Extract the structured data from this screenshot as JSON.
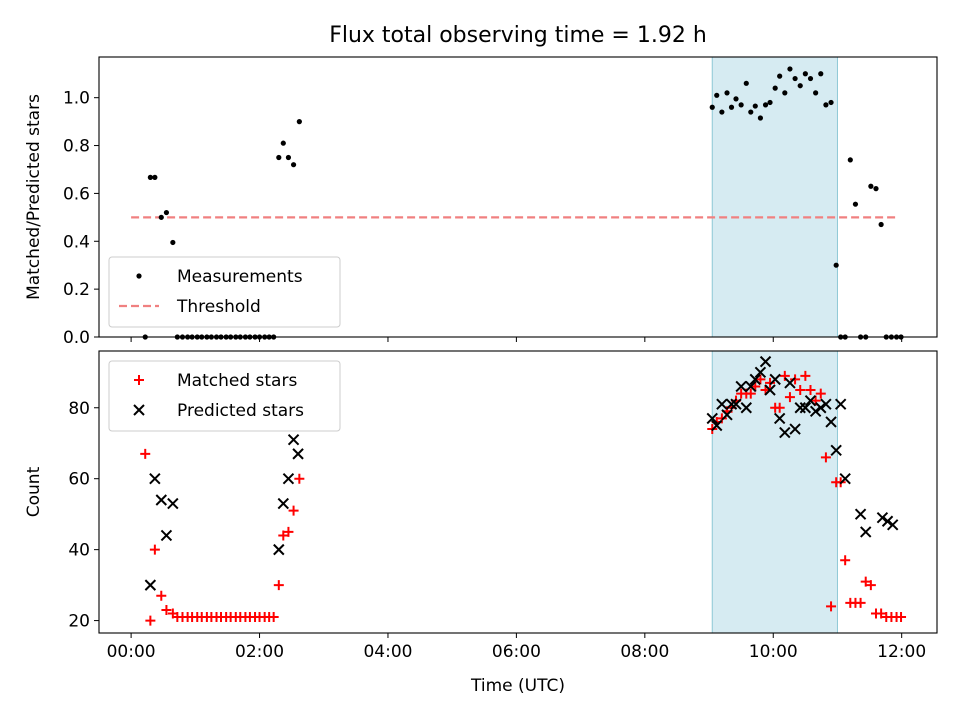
{
  "chart_data": [
    {
      "type": "scatter",
      "title": "Flux total observing time = 1.92 h",
      "ylabel": "Matched/Predicted stars",
      "xlabel": "",
      "xlim": [
        -0.5,
        12.55
      ],
      "ylim": [
        0,
        1.17
      ],
      "xticks": [
        0,
        2,
        4,
        6,
        8,
        10,
        12
      ],
      "xtick_labels": [
        "00:00",
        "02:00",
        "04:00",
        "06:00",
        "08:00",
        "10:00",
        "12:00"
      ],
      "yticks": [
        0.0,
        0.2,
        0.4,
        0.6,
        0.8,
        1.0
      ],
      "ytick_labels": [
        "0.0",
        "0.2",
        "0.4",
        "0.6",
        "0.8",
        "1.0"
      ],
      "shaded_span": [
        9.05,
        11.0
      ],
      "legend_location": "lower-left",
      "threshold": {
        "name": "Threshold",
        "value": 0.5,
        "x_range": [
          0.0,
          11.9
        ],
        "color": "#f08080"
      },
      "series": [
        {
          "name": "Measurements",
          "color": "#000000",
          "x": [
            0.22,
            0.3,
            0.37,
            0.47,
            0.55,
            0.65,
            0.72,
            0.8,
            0.88,
            0.95,
            1.03,
            1.1,
            1.18,
            1.25,
            1.33,
            1.4,
            1.48,
            1.55,
            1.63,
            1.7,
            1.78,
            1.85,
            1.93,
            2.0,
            2.08,
            2.15,
            2.22,
            2.3,
            2.37,
            2.45,
            2.53,
            2.62,
            9.05,
            9.12,
            9.2,
            9.28,
            9.35,
            9.42,
            9.5,
            9.58,
            9.65,
            9.72,
            9.8,
            9.88,
            9.95,
            10.03,
            10.1,
            10.18,
            10.26,
            10.34,
            10.42,
            10.5,
            10.58,
            10.66,
            10.74,
            10.82,
            10.9,
            10.98,
            11.05,
            11.12,
            11.2,
            11.28,
            11.36,
            11.44,
            11.52,
            11.6,
            11.68,
            11.76,
            11.84,
            11.92,
            11.99
          ],
          "y": [
            0.0,
            0.667,
            0.667,
            0.5,
            0.52,
            0.395,
            0.0,
            0.0,
            0.0,
            0.0,
            0.0,
            0.0,
            0.0,
            0.0,
            0.0,
            0.0,
            0.0,
            0.0,
            0.0,
            0.0,
            0.0,
            0.0,
            0.0,
            0.0,
            0.0,
            0.0,
            0.0,
            0.75,
            0.81,
            0.75,
            0.72,
            0.9,
            0.96,
            1.01,
            0.94,
            1.02,
            0.96,
            0.995,
            0.97,
            1.06,
            0.94,
            0.965,
            0.915,
            0.97,
            0.98,
            1.04,
            1.09,
            1.02,
            1.12,
            1.08,
            1.05,
            1.1,
            1.08,
            1.02,
            1.1,
            0.97,
            0.98,
            0.3,
            0.0,
            0.0,
            0.74,
            0.555,
            0.0,
            0.0,
            0.63,
            0.62,
            0.47,
            0.0,
            0.0,
            0.0,
            0.0
          ]
        }
      ]
    },
    {
      "type": "scatter",
      "title": "",
      "ylabel": "Count",
      "xlabel": "Time (UTC)",
      "xlim": [
        -0.5,
        12.55
      ],
      "ylim": [
        16.5,
        96
      ],
      "xticks": [
        0,
        2,
        4,
        6,
        8,
        10,
        12
      ],
      "xtick_labels": [
        "00:00",
        "02:00",
        "04:00",
        "06:00",
        "08:00",
        "10:00",
        "12:00"
      ],
      "yticks": [
        20,
        40,
        60,
        80
      ],
      "ytick_labels": [
        "20",
        "40",
        "60",
        "80"
      ],
      "shaded_span": [
        9.05,
        11.0
      ],
      "legend_location": "upper-left",
      "series": [
        {
          "name": "Matched stars",
          "color": "#ff0000",
          "marker": "plus",
          "x": [
            0.22,
            0.3,
            0.37,
            0.47,
            0.55,
            0.65,
            0.72,
            0.8,
            0.88,
            0.95,
            1.03,
            1.1,
            1.18,
            1.25,
            1.33,
            1.4,
            1.48,
            1.55,
            1.63,
            1.7,
            1.78,
            1.85,
            1.93,
            2.0,
            2.08,
            2.15,
            2.22,
            2.3,
            2.37,
            2.45,
            2.53,
            2.62,
            9.05,
            9.12,
            9.2,
            9.28,
            9.35,
            9.42,
            9.5,
            9.58,
            9.65,
            9.72,
            9.8,
            9.88,
            9.95,
            10.03,
            10.1,
            10.18,
            10.26,
            10.34,
            10.42,
            10.5,
            10.58,
            10.66,
            10.74,
            10.82,
            10.9,
            10.98,
            11.05,
            11.12,
            11.2,
            11.28,
            11.36,
            11.44,
            11.52,
            11.6,
            11.68,
            11.76,
            11.84,
            11.92,
            11.99
          ],
          "y": [
            67,
            20,
            40,
            27,
            23,
            22,
            21,
            21,
            21,
            21,
            21,
            21,
            21,
            21,
            21,
            21,
            21,
            21,
            21,
            21,
            21,
            21,
            21,
            21,
            21,
            21,
            21,
            30,
            44,
            45,
            51,
            60,
            74,
            76,
            77,
            79,
            80,
            82,
            84,
            84,
            84,
            86,
            88,
            85,
            87,
            80,
            80,
            89,
            83,
            88,
            85,
            89,
            85,
            82,
            84,
            66,
            24,
            59,
            59,
            37,
            25,
            25,
            25,
            31,
            30,
            22,
            22,
            21,
            21,
            21,
            21
          ]
        },
        {
          "name": "Predicted stars",
          "color": "#000000",
          "marker": "x",
          "x": [
            0.3,
            0.37,
            0.47,
            0.55,
            0.65,
            2.3,
            2.37,
            2.45,
            2.53,
            2.6,
            9.05,
            9.12,
            9.2,
            9.28,
            9.35,
            9.42,
            9.5,
            9.58,
            9.65,
            9.72,
            9.8,
            9.88,
            9.95,
            10.03,
            10.1,
            10.18,
            10.26,
            10.34,
            10.42,
            10.5,
            10.58,
            10.66,
            10.74,
            10.82,
            10.9,
            10.98,
            11.05,
            11.12,
            11.36,
            11.44,
            11.7,
            11.78,
            11.86
          ],
          "y": [
            30,
            60,
            54,
            44,
            53,
            40,
            53,
            60,
            71,
            67,
            77,
            75,
            81,
            78,
            81,
            81,
            86,
            80,
            86,
            88,
            90,
            93,
            85,
            88,
            77,
            73,
            87,
            74,
            80,
            80,
            82,
            79,
            80,
            81,
            76,
            68,
            81,
            60,
            50,
            45,
            49,
            48,
            47
          ]
        }
      ]
    }
  ]
}
